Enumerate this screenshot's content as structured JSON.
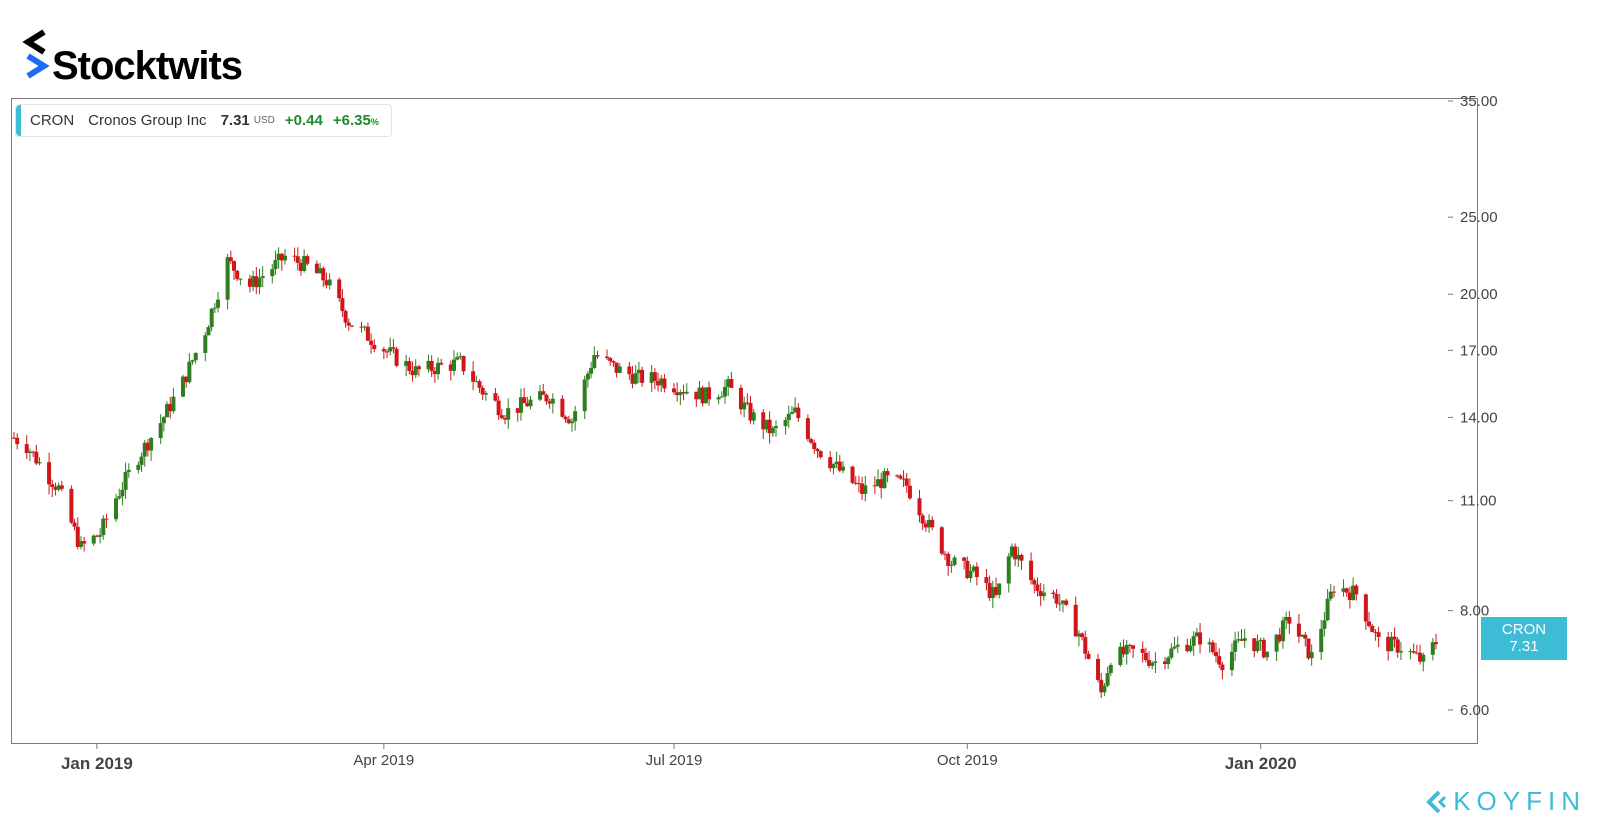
{
  "brand": {
    "name": "Stocktwits",
    "accent": "#1e6cf0"
  },
  "legend": {
    "symbol": "CRON",
    "name": "Cronos Group Inc",
    "price": "7.31",
    "currency": "USD",
    "change": "+0.44",
    "change_pct": "+6.35",
    "pct_sign": "%"
  },
  "price_tag": {
    "symbol": "CRON",
    "price": "7.31",
    "color": "#3dbcd6"
  },
  "watermark": "KOYFIN",
  "colors": {
    "up": "#2e7d1f",
    "down": "#d0161b",
    "accent": "#3dbcd6"
  },
  "chart_data": {
    "type": "candlestick",
    "scale": "log",
    "ylim": [
      5.5,
      35
    ],
    "y_ticks": [
      "35.00",
      "25.00",
      "20.00",
      "17.00",
      "14.00",
      "11.00",
      "8.00",
      "6.00"
    ],
    "x_ticks": [
      {
        "label": "Jan 2019",
        "date": "2019-01-01",
        "major": true
      },
      {
        "label": "Apr 2019",
        "date": "2019-04-01",
        "major": false
      },
      {
        "label": "Jul 2019",
        "date": "2019-07-01",
        "major": false
      },
      {
        "label": "Oct 2019",
        "date": "2019-10-01",
        "major": false
      },
      {
        "label": "Jan 2020",
        "date": "2020-01-01",
        "major": true
      }
    ],
    "x_range": [
      "2018-12-06",
      "2020-02-25"
    ],
    "last_price": 7.31,
    "series": [
      {
        "dates": [
          "2018-12-06",
          "2018-12-10",
          "2018-12-17",
          "2018-12-20",
          "2018-12-24",
          "2018-12-27",
          "2019-01-02",
          "2019-01-07",
          "2019-01-14",
          "2019-01-21",
          "2019-01-28",
          "2019-02-04",
          "2019-02-11",
          "2019-02-18",
          "2019-02-25",
          "2019-03-01",
          "2019-03-07",
          "2019-03-14",
          "2019-03-21",
          "2019-03-28",
          "2019-04-04",
          "2019-04-11",
          "2019-04-18",
          "2019-04-25",
          "2019-05-02",
          "2019-05-09",
          "2019-05-16",
          "2019-05-23",
          "2019-05-30",
          "2019-06-06",
          "2019-06-13",
          "2019-06-20",
          "2019-06-27",
          "2019-07-04",
          "2019-07-11",
          "2019-07-18",
          "2019-07-25",
          "2019-08-01",
          "2019-08-08",
          "2019-08-15",
          "2019-08-22",
          "2019-08-29",
          "2019-09-05",
          "2019-09-12",
          "2019-09-19",
          "2019-09-26",
          "2019-10-03",
          "2019-10-10",
          "2019-10-15",
          "2019-10-22",
          "2019-10-29",
          "2019-11-05",
          "2019-11-12",
          "2019-11-15",
          "2019-11-22",
          "2019-11-29",
          "2019-12-06",
          "2019-12-13",
          "2019-12-20",
          "2019-12-27",
          "2020-01-03",
          "2020-01-10",
          "2020-01-17",
          "2020-01-24",
          "2020-01-31",
          "2020-02-07",
          "2020-02-14",
          "2020-02-21",
          "2020-02-25"
        ],
        "close": [
          13.2,
          12.9,
          11.8,
          11.4,
          10.3,
          9.6,
          10.0,
          11.1,
          12.5,
          13.8,
          15.5,
          18.0,
          22.0,
          20.5,
          21.6,
          22.3,
          21.8,
          20.8,
          18.5,
          17.6,
          16.7,
          16.0,
          16.2,
          16.4,
          15.1,
          14.2,
          14.6,
          14.9,
          13.9,
          16.8,
          16.1,
          15.7,
          15.6,
          15.2,
          14.9,
          15.3,
          14.1,
          13.4,
          14.2,
          12.8,
          12.0,
          11.3,
          11.7,
          11.5,
          10.2,
          9.2,
          8.9,
          8.3,
          9.6,
          8.6,
          8.3,
          7.5,
          6.3,
          7.0,
          7.1,
          6.9,
          7.2,
          7.4,
          6.9,
          7.4,
          7.1,
          7.8,
          7.0,
          8.6,
          8.4,
          7.3,
          7.2,
          6.9,
          7.31
        ]
      }
    ]
  }
}
